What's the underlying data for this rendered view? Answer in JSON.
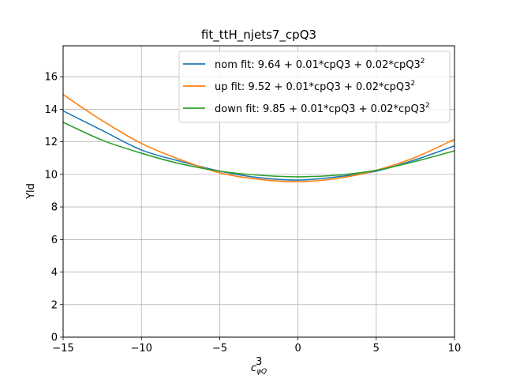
{
  "chart_data": {
    "type": "line",
    "title": "fit_ttH_njets7_cpQ3",
    "xlabel": "c",
    "xlabel_sup": "3",
    "xlabel_sub": "φQ",
    "ylabel": "Yld",
    "xlim": [
      -15,
      10
    ],
    "ylim": [
      0,
      17.9
    ],
    "xticks": [
      -15,
      -10,
      -5,
      0,
      5,
      10
    ],
    "xtick_labels": [
      "−15",
      "−10",
      "−5",
      "0",
      "5",
      "10"
    ],
    "yticks": [
      0,
      2,
      4,
      6,
      8,
      10,
      12,
      14,
      16
    ],
    "ytick_labels": [
      "0",
      "2",
      "4",
      "6",
      "8",
      "10",
      "12",
      "14",
      "16"
    ],
    "grid": true,
    "legend_position": "top-right",
    "series": [
      {
        "name": "nom fit: 9.64 + 0.01*cpQ3 + 0.02*cpQ3",
        "name_sup": "2",
        "color": "#1f77b4",
        "coefficients": {
          "c0": 9.64,
          "c1": 0.01,
          "c2": 0.02
        },
        "x": [
          -15,
          -12.5,
          -10,
          -7.5,
          -5,
          -2.5,
          0,
          2.5,
          5,
          7.5,
          10
        ],
        "y": [
          13.9,
          12.7,
          11.5,
          10.8,
          10.2,
          9.8,
          9.65,
          9.85,
          10.2,
          10.9,
          11.75
        ]
      },
      {
        "name": "up fit: 9.52 + 0.01*cpQ3 + 0.02*cpQ3",
        "name_sup": "2",
        "color": "#ff7f0e",
        "coefficients": {
          "c0": 9.52,
          "c1": 0.01,
          "c2": 0.02
        },
        "x": [
          -15,
          -12.5,
          -10,
          -7.5,
          -5,
          -2.5,
          0,
          2.5,
          5,
          7.5,
          10
        ],
        "y": [
          14.9,
          13.3,
          11.9,
          10.9,
          10.1,
          9.7,
          9.55,
          9.75,
          10.25,
          11.05,
          12.15
        ]
      },
      {
        "name": "down fit: 9.85 + 0.01*cpQ3 + 0.02*cpQ3",
        "name_sup": "2",
        "color": "#2ca02c",
        "coefficients": {
          "c0": 9.85,
          "c1": 0.01,
          "c2": 0.02
        },
        "x": [
          -15,
          -12.5,
          -10,
          -7.5,
          -5,
          -2.5,
          0,
          2.5,
          5,
          7.5,
          10
        ],
        "y": [
          13.2,
          12.1,
          11.3,
          10.65,
          10.2,
          9.95,
          9.85,
          9.95,
          10.25,
          10.8,
          11.45
        ]
      }
    ]
  }
}
